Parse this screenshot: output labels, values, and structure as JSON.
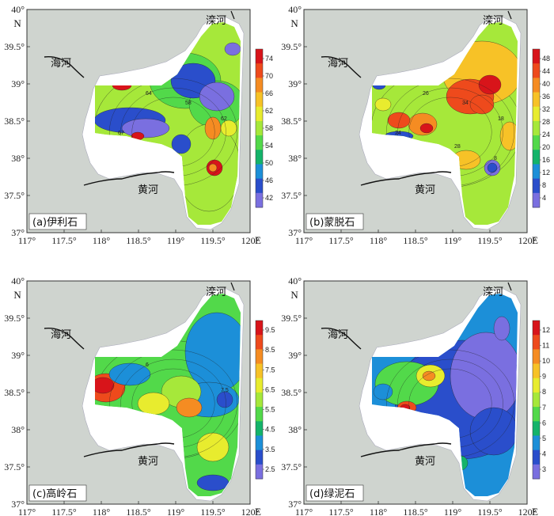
{
  "panels": [
    {
      "id": "a",
      "label": "(a)伊利石",
      "colorbar_ticks": [
        "74",
        "70",
        "66",
        "62",
        "58",
        "54",
        "50",
        "46",
        "42"
      ],
      "contour_labels": [
        "64",
        "62",
        "58",
        "67"
      ]
    },
    {
      "id": "b",
      "label": "(b)蒙脱石",
      "colorbar_ticks": [
        "48",
        "44",
        "40",
        "36",
        "32",
        "28",
        "24",
        "20",
        "16",
        "12",
        "8",
        "4"
      ],
      "contour_labels": [
        "26",
        "18",
        "34",
        "24",
        "28",
        "8"
      ]
    },
    {
      "id": "c",
      "label": "(c)高岭石",
      "colorbar_ticks": [
        "9.5",
        "8.5",
        "7.5",
        "6.5",
        "5.5",
        "4.5",
        "3.5",
        "2.5"
      ],
      "contour_labels": [
        "6",
        "7.5"
      ]
    },
    {
      "id": "d",
      "label": "(d)绿泥石",
      "colorbar_ticks": [
        "12",
        "11",
        "10",
        "9",
        "8",
        "7",
        "6",
        "5",
        "4",
        "3"
      ],
      "contour_labels": []
    }
  ],
  "axes": {
    "x_ticks": [
      "117°",
      "117.5°",
      "118°",
      "118.5°",
      "119°",
      "119.5°",
      "120°"
    ],
    "x_unit": "E",
    "y_ticks": [
      "40°",
      "39.5°",
      "39°",
      "38.5°",
      "38°",
      "37.5°",
      "37°"
    ],
    "y_unit": "N"
  },
  "rivers": {
    "luanhe": "滦河",
    "haihe": "海河",
    "huanghe": "黄河"
  },
  "colors": {
    "sea": "#ffffff",
    "land": "#cfd4cf",
    "frame": "#333333"
  },
  "colorscale": [
    "#7a6fe0",
    "#2a4ecb",
    "#1c8fd8",
    "#14b36a",
    "#52d94a",
    "#a6e83a",
    "#e8ec2e",
    "#f7c227",
    "#f58c22",
    "#ee4a1c",
    "#d8141a"
  ]
}
